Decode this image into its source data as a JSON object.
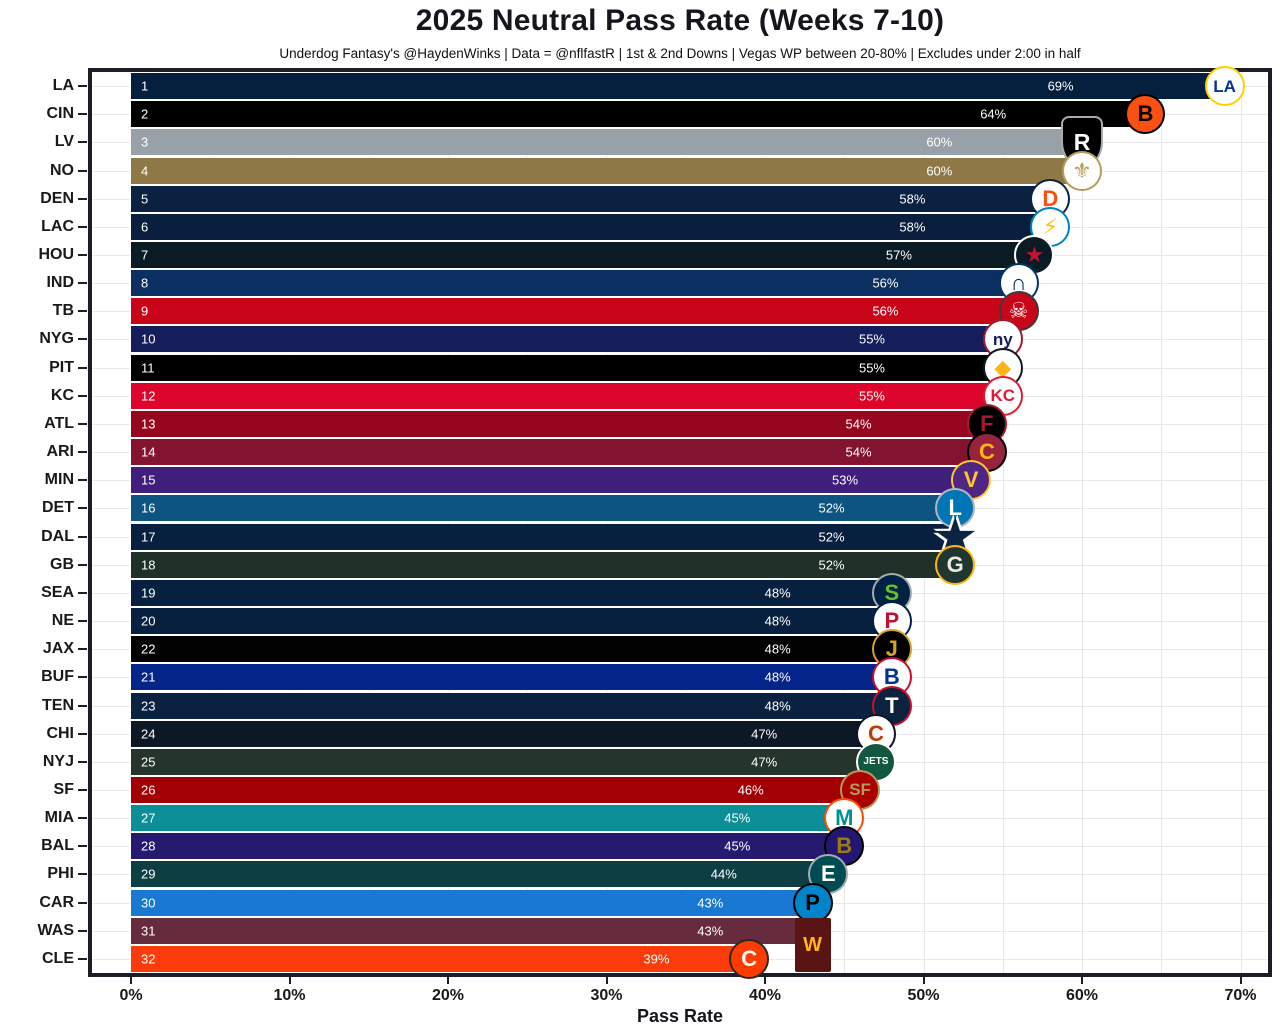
{
  "header": {
    "title": "2025 Neutral Pass Rate (Weeks 7-10)",
    "subtitle": "Underdog Fantasy's @HaydenWinks | Data = @nflfastR | 1st & 2nd Downs | Vegas WP between 20-80% | Excludes under 2:00 in half"
  },
  "chart_data": {
    "type": "bar",
    "orientation": "horizontal",
    "title": "2025 Neutral Pass Rate (Weeks 7-10)",
    "subtitle": "Underdog Fantasy's @HaydenWinks | Data = @nflfastR | 1st & 2nd Downs | Vegas WP between 20-80% | Excludes under 2:00 in half",
    "xlabel": "Pass Rate",
    "xlim": [
      0,
      70
    ],
    "x_tick_values": [
      0,
      10,
      20,
      30,
      40,
      50,
      60,
      70
    ],
    "x_tick_labels": [
      "0%",
      "10%",
      "20%",
      "30%",
      "40%",
      "50%",
      "60%",
      "70%"
    ],
    "grid": "on",
    "legend": "none",
    "value_unit": "percent",
    "teams": [
      {
        "abbr": "LA",
        "rank": 1,
        "value": 69,
        "value_label": "69%",
        "bar_color": "#05203E",
        "logo": {
          "text": "LA",
          "shape": "circle",
          "bg": "#FFFFFF",
          "fg": "#003594",
          "border": "#FFD100"
        }
      },
      {
        "abbr": "CIN",
        "rank": 2,
        "value": 64,
        "value_label": "64%",
        "bar_color": "#000000",
        "logo": {
          "text": "B",
          "shape": "circle",
          "bg": "#FB4F14",
          "fg": "#000000",
          "border": "#000000"
        }
      },
      {
        "abbr": "LV",
        "rank": 3,
        "value": 60,
        "value_label": "60%",
        "bar_color": "#97A1A7",
        "logo": {
          "text": "R",
          "shape": "shield",
          "bg": "#000000",
          "fg": "#FFFFFF",
          "border": "#A5ACAF"
        }
      },
      {
        "abbr": "NO",
        "rank": 4,
        "value": 60,
        "value_label": "60%",
        "bar_color": "#8E7845",
        "logo": {
          "text": "⚜",
          "shape": "circle",
          "bg": "#FFFFFF",
          "fg": "#B99A5E",
          "border": "#B99A5E"
        }
      },
      {
        "abbr": "DEN",
        "rank": 5,
        "value": 58,
        "value_label": "58%",
        "bar_color": "#0B2142",
        "logo": {
          "text": "D",
          "shape": "circle",
          "bg": "#FFFFFF",
          "fg": "#FB4F14",
          "border": "#0C2340"
        }
      },
      {
        "abbr": "LAC",
        "rank": 6,
        "value": 58,
        "value_label": "58%",
        "bar_color": "#0A1F3D",
        "logo": {
          "text": "⚡",
          "shape": "circle",
          "bg": "#FFFFFF",
          "fg": "#FFC20E",
          "border": "#0080C6"
        }
      },
      {
        "abbr": "HOU",
        "rank": 7,
        "value": 57,
        "value_label": "57%",
        "bar_color": "#0A1B24",
        "logo": {
          "text": "★",
          "shape": "circle",
          "bg": "#0A1B24",
          "fg": "#C41230",
          "border": "#FFFFFF"
        }
      },
      {
        "abbr": "IND",
        "rank": 8,
        "value": 56,
        "value_label": "56%",
        "bar_color": "#0B2F60",
        "logo": {
          "text": "∩",
          "shape": "circle",
          "bg": "#FFFFFF",
          "fg": "#013369",
          "border": "#013369"
        }
      },
      {
        "abbr": "TB",
        "rank": 9,
        "value": 56,
        "value_label": "56%",
        "bar_color": "#C9051A",
        "logo": {
          "text": "☠",
          "shape": "circle",
          "bg": "#C9051A",
          "fg": "#FFFFFF",
          "border": "#3E3A35"
        }
      },
      {
        "abbr": "NYG",
        "rank": 10,
        "value": 55,
        "value_label": "55%",
        "bar_color": "#151D5A",
        "logo": {
          "text": "ny",
          "shape": "circle",
          "bg": "#FFFFFF",
          "fg": "#151D5A",
          "border": "#A71930"
        }
      },
      {
        "abbr": "PIT",
        "rank": 11,
        "value": 55,
        "value_label": "55%",
        "bar_color": "#000000",
        "logo": {
          "text": "◆",
          "shape": "circle",
          "bg": "#FFFFFF",
          "fg": "#FFB612",
          "border": "#101820"
        }
      },
      {
        "abbr": "KC",
        "rank": 12,
        "value": 55,
        "value_label": "55%",
        "bar_color": "#DD052B",
        "logo": {
          "text": "KC",
          "shape": "circle",
          "bg": "#FFFFFF",
          "fg": "#E31837",
          "border": "#E31837"
        }
      },
      {
        "abbr": "ATL",
        "rank": 13,
        "value": 54,
        "value_label": "54%",
        "bar_color": "#96071F",
        "logo": {
          "text": "F",
          "shape": "circle",
          "bg": "#000000",
          "fg": "#A71930",
          "border": "#A71930"
        }
      },
      {
        "abbr": "ARI",
        "rank": 14,
        "value": 54,
        "value_label": "54%",
        "bar_color": "#84132F",
        "logo": {
          "text": "C",
          "shape": "circle",
          "bg": "#97233F",
          "fg": "#FFB612",
          "border": "#000000"
        }
      },
      {
        "abbr": "MIN",
        "rank": 15,
        "value": 53,
        "value_label": "53%",
        "bar_color": "#3F1F7B",
        "logo": {
          "text": "V",
          "shape": "circle",
          "bg": "#4F2683",
          "fg": "#FFC62F",
          "border": "#FFC62F"
        }
      },
      {
        "abbr": "DET",
        "rank": 16,
        "value": 52,
        "value_label": "52%",
        "bar_color": "#0E5480",
        "logo": {
          "text": "L",
          "shape": "circle",
          "bg": "#0076B6",
          "fg": "#FFFFFF",
          "border": "#B0B7BC"
        }
      },
      {
        "abbr": "DAL",
        "rank": 17,
        "value": 52,
        "value_label": "52%",
        "bar_color": "#07203F",
        "logo": {
          "text": "★",
          "shape": "star",
          "bg": "transparent",
          "fg": "#0B2444",
          "border": "transparent"
        }
      },
      {
        "abbr": "GB",
        "rank": 18,
        "value": 52,
        "value_label": "52%",
        "bar_color": "#1E3027",
        "logo": {
          "text": "G",
          "shape": "circle",
          "bg": "#203731",
          "fg": "#EDEADF",
          "border": "#FFB612"
        }
      },
      {
        "abbr": "SEA",
        "rank": 19,
        "value": 48,
        "value_label": "48%",
        "bar_color": "#07203F",
        "logo": {
          "text": "S",
          "shape": "circle",
          "bg": "#002244",
          "fg": "#69BE28",
          "border": "#A5ACAF"
        }
      },
      {
        "abbr": "NE",
        "rank": 20,
        "value": 48,
        "value_label": "48%",
        "bar_color": "#07203F",
        "logo": {
          "text": "P",
          "shape": "circle",
          "bg": "#FFFFFF",
          "fg": "#C60C30",
          "border": "#002244"
        }
      },
      {
        "abbr": "JAX",
        "rank": 22,
        "value": 48,
        "value_label": "48%",
        "bar_color": "#010101",
        "logo": {
          "text": "J",
          "shape": "circle",
          "bg": "#000000",
          "fg": "#D7A22A",
          "border": "#D7A22A"
        }
      },
      {
        "abbr": "BUF",
        "rank": 21,
        "value": 48,
        "value_label": "48%",
        "bar_color": "#05248A",
        "logo": {
          "text": "B",
          "shape": "circle",
          "bg": "#FFFFFF",
          "fg": "#00338D",
          "border": "#C60C30"
        }
      },
      {
        "abbr": "TEN",
        "rank": 23,
        "value": 48,
        "value_label": "48%",
        "bar_color": "#0A2240",
        "logo": {
          "text": "T",
          "shape": "circle",
          "bg": "#0C2340",
          "fg": "#FFFFFF",
          "border": "#C8102E"
        }
      },
      {
        "abbr": "CHI",
        "rank": 24,
        "value": 47,
        "value_label": "47%",
        "bar_color": "#0D1826",
        "logo": {
          "text": "C",
          "shape": "circle",
          "bg": "#FFFFFF",
          "fg": "#C83803",
          "border": "#0B162A"
        }
      },
      {
        "abbr": "NYJ",
        "rank": 25,
        "value": 47,
        "value_label": "47%",
        "bar_color": "#26352C",
        "logo": {
          "text": "JETS",
          "shape": "circle",
          "bg": "#125740",
          "fg": "#FFFFFF",
          "border": "#FFFFFF"
        }
      },
      {
        "abbr": "SF",
        "rank": 26,
        "value": 46,
        "value_label": "46%",
        "bar_color": "#A30006",
        "logo": {
          "text": "SF",
          "shape": "circle",
          "bg": "#AA0000",
          "fg": "#B3995D",
          "border": "#B3995D"
        }
      },
      {
        "abbr": "MIA",
        "rank": 27,
        "value": 45,
        "value_label": "45%",
        "bar_color": "#0B8E96",
        "logo": {
          "text": "M",
          "shape": "circle",
          "bg": "#FFFFFF",
          "fg": "#008E97",
          "border": "#FC4C02"
        }
      },
      {
        "abbr": "BAL",
        "rank": 28,
        "value": 45,
        "value_label": "45%",
        "bar_color": "#251A70",
        "logo": {
          "text": "B",
          "shape": "circle",
          "bg": "#241773",
          "fg": "#9E7C0C",
          "border": "#000000"
        }
      },
      {
        "abbr": "PHI",
        "rank": 29,
        "value": 44,
        "value_label": "44%",
        "bar_color": "#0C3E44",
        "logo": {
          "text": "E",
          "shape": "circle",
          "bg": "#004C54",
          "fg": "#FFFFFF",
          "border": "#A5ACAF"
        }
      },
      {
        "abbr": "CAR",
        "rank": 30,
        "value": 43,
        "value_label": "43%",
        "bar_color": "#1878D2",
        "logo": {
          "text": "P",
          "shape": "circle",
          "bg": "#0085CA",
          "fg": "#000000",
          "border": "#000000"
        }
      },
      {
        "abbr": "WAS",
        "rank": 31,
        "value": 43,
        "value_label": "43%",
        "bar_color": "#662C3D",
        "logo": {
          "text": "W",
          "shape": "square",
          "bg": "#5A1414",
          "fg": "#FFB612",
          "border": "#5A1414"
        }
      },
      {
        "abbr": "CLE",
        "rank": 32,
        "value": 39,
        "value_label": "39%",
        "bar_color": "#FB3B0A",
        "logo": {
          "text": "C",
          "shape": "circle",
          "bg": "#FF3C00",
          "fg": "#FFFFFF",
          "border": "#31261D"
        }
      }
    ]
  }
}
